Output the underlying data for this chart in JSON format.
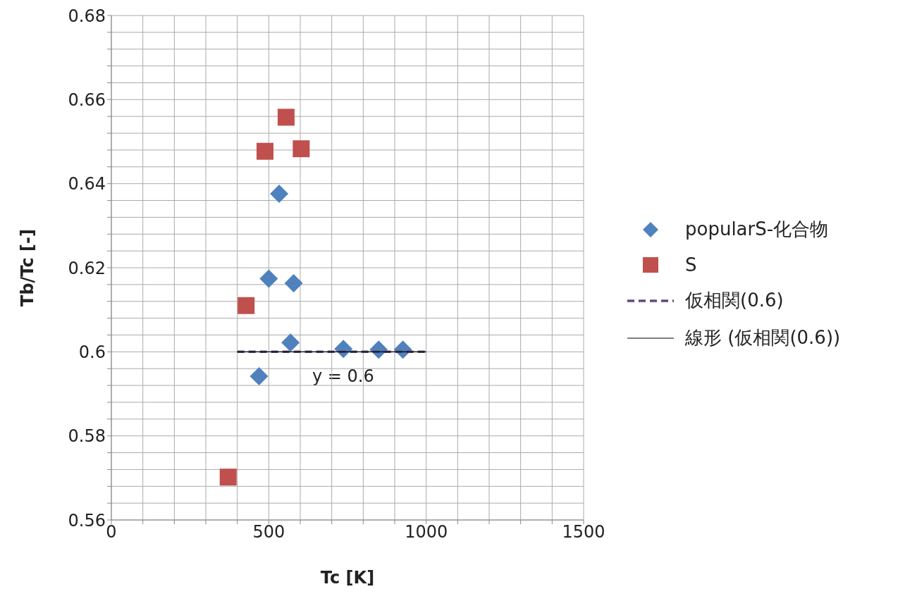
{
  "chart_data": {
    "type": "scatter",
    "xlabel": "Tc [K]",
    "ylabel": "Tb/Tc [-]",
    "xlim": [
      0,
      1500
    ],
    "ylim": [
      0.56,
      0.68
    ],
    "xticks": [
      0,
      {
        "value": 100,
        "label": null
      },
      {
        "value": 200,
        "label": null
      },
      {
        "value": 300,
        "label": null
      },
      {
        "value": 400,
        "label": null
      },
      500,
      {
        "value": 600,
        "label": null
      },
      {
        "value": 700,
        "label": null
      },
      {
        "value": 800,
        "label": null
      },
      {
        "value": 900,
        "label": null
      },
      1000,
      {
        "value": 1100,
        "label": null
      },
      {
        "value": 1200,
        "label": null
      },
      {
        "value": 1300,
        "label": null
      },
      {
        "value": 1400,
        "label": null
      },
      1500
    ],
    "yticks": [
      0.56,
      {
        "value": 0.564,
        "label": null
      },
      {
        "value": 0.568,
        "label": null
      },
      {
        "value": 0.572,
        "label": null
      },
      {
        "value": 0.576,
        "label": null
      },
      0.58,
      {
        "value": 0.584,
        "label": null
      },
      {
        "value": 0.588,
        "label": null
      },
      {
        "value": 0.592,
        "label": null
      },
      {
        "value": 0.596,
        "label": null
      },
      0.6,
      {
        "value": 0.604,
        "label": null
      },
      {
        "value": 0.608,
        "label": null
      },
      {
        "value": 0.612,
        "label": null
      },
      {
        "value": 0.616,
        "label": null
      },
      0.62,
      {
        "value": 0.624,
        "label": null
      },
      {
        "value": 0.628,
        "label": null
      },
      {
        "value": 0.632,
        "label": null
      },
      {
        "value": 0.636,
        "label": null
      },
      0.64,
      {
        "value": 0.644,
        "label": null
      },
      {
        "value": 0.648,
        "label": null
      },
      {
        "value": 0.652,
        "label": null
      },
      {
        "value": 0.656,
        "label": null
      },
      0.66,
      {
        "value": 0.664,
        "label": null
      },
      {
        "value": 0.668,
        "label": null
      },
      {
        "value": 0.672,
        "label": null
      },
      {
        "value": 0.676,
        "label": null
      },
      0.68
    ],
    "grid": true,
    "legend": "right",
    "series": [
      {
        "name": "popularS-化合物",
        "color": "#4f81bd",
        "marker": "diamond",
        "x": [
          533,
          500,
          579,
          569,
          737,
          849,
          926,
          469
        ],
        "values": [
          0.6376,
          0.6174,
          0.6163,
          0.6022,
          0.6007,
          0.6005,
          0.6005,
          0.5942
        ]
      },
      {
        "name": "S",
        "color": "#c0504d",
        "marker": "square",
        "x": [
          555,
          488,
          603,
          428,
          371
        ],
        "values": [
          0.6558,
          0.6477,
          0.6483,
          0.611,
          0.5702
        ]
      },
      {
        "name": "仮相関(0.6)",
        "type": "line",
        "color": "#604a7b",
        "marker": "none",
        "line_style": "dashed",
        "x": [
          400,
          1000
        ],
        "values": [
          0.6,
          0.6
        ]
      },
      {
        "name": "線形 (仮相関(0.6))",
        "type": "line",
        "color": "#000000",
        "marker": "none",
        "line_style": "solid",
        "x": [
          400,
          1000
        ],
        "values": [
          0.6,
          0.6
        ]
      }
    ],
    "annotations": [
      "y = 0.6"
    ]
  }
}
